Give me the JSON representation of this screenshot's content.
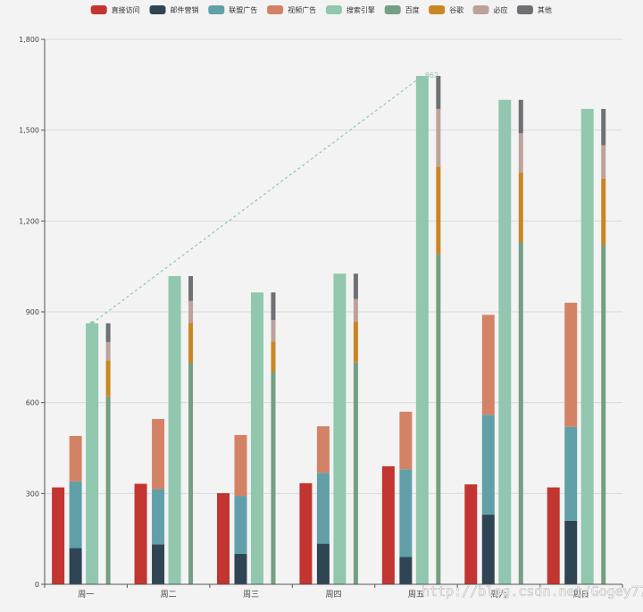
{
  "chart_data": {
    "type": "bar",
    "categories": [
      "周一",
      "周二",
      "周三",
      "周四",
      "周五",
      "周六",
      "周日"
    ],
    "series": [
      {
        "name": "直接访问",
        "color": "#c23531",
        "values": [
          320,
          332,
          301,
          334,
          390,
          330,
          320
        ]
      },
      {
        "name": "邮件营销",
        "color": "#2f4554",
        "values": [
          120,
          132,
          101,
          134,
          90,
          230,
          210
        ]
      },
      {
        "name": "联盟广告",
        "color": "#61a0a8",
        "values": [
          220,
          182,
          191,
          234,
          290,
          330,
          310
        ]
      },
      {
        "name": "视频广告",
        "color": "#d48265",
        "values": [
          150,
          232,
          201,
          154,
          190,
          330,
          410
        ]
      },
      {
        "name": "搜索引擎",
        "color": "#91c7ae",
        "values": [
          862,
          1018,
          964,
          1026,
          1679,
          1600,
          1570
        ]
      },
      {
        "name": "百度",
        "color": "#749f83",
        "values": [
          620,
          732,
          701,
          734,
          1090,
          1130,
          1120
        ]
      },
      {
        "name": "谷歌",
        "color": "#ca8622",
        "values": [
          120,
          132,
          101,
          134,
          290,
          230,
          220
        ]
      },
      {
        "name": "必应",
        "color": "#bda29a",
        "values": [
          60,
          72,
          71,
          74,
          190,
          130,
          110
        ]
      },
      {
        "name": "其他",
        "color": "#6e7074",
        "values": [
          62,
          82,
          91,
          84,
          109,
          110,
          120
        ]
      }
    ],
    "stacks": [
      {
        "series": [
          "直接访问"
        ]
      },
      {
        "series": [
          "邮件营销",
          "联盟广告",
          "视频广告"
        ]
      },
      {
        "series": [
          "搜索引擎"
        ]
      },
      {
        "series": [
          "百度",
          "谷歌",
          "必应",
          "其他"
        ]
      }
    ],
    "markLine": {
      "series": "搜索引擎",
      "from": {
        "category": "周一",
        "value": 862
      },
      "to": {
        "category": "周五",
        "value": 1679
      },
      "label": "862",
      "color": "#91c7ae"
    },
    "ylim": [
      0,
      1800
    ],
    "yticks": [
      0,
      300,
      600,
      900,
      1200,
      1500,
      1800
    ],
    "ytick_labels": [
      "0",
      "300",
      "600",
      "900",
      "1,200",
      "1,500",
      "1,800"
    ],
    "title": "",
    "xlabel": "",
    "ylabel": "",
    "legend_position": "top-center",
    "grid": true
  },
  "watermark": "http://blog.csdn.net/Gogey77"
}
